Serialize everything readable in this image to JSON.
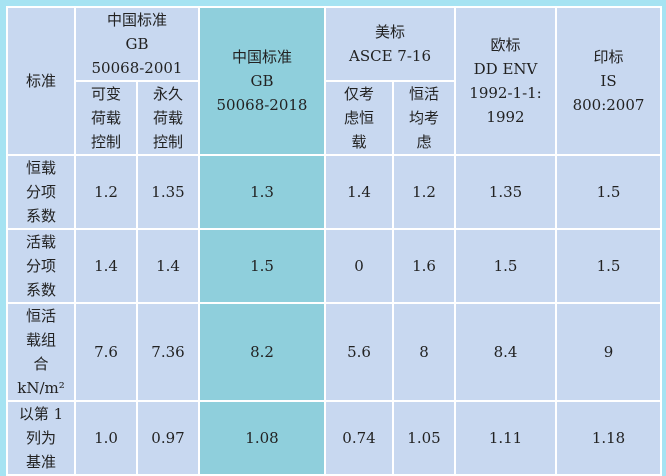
{
  "table": {
    "corner": "标准",
    "groups": [
      {
        "title": [
          "中国标准",
          "GB",
          "50068-2001"
        ],
        "subs": [
          "可变荷载控制",
          "永久荷载控制"
        ]
      },
      {
        "title": [
          "中国标准",
          "GB",
          "50068-2018"
        ]
      },
      {
        "title": [
          "美标",
          "ASCE 7-16"
        ],
        "subs": [
          "仅考虑恒载",
          "恒活均考虑"
        ]
      },
      {
        "title": [
          "欧标",
          "DD ENV",
          "1992-1-1:",
          "1992"
        ]
      },
      {
        "title": [
          "印标",
          "IS",
          "800:2007"
        ]
      }
    ],
    "rows": [
      {
        "label": [
          "恒载",
          "分项",
          "系数"
        ],
        "cells": [
          "1.2",
          "1.35",
          "1.3",
          "1.4",
          "1.2",
          "1.35",
          "1.5"
        ]
      },
      {
        "label": [
          "活载",
          "分项",
          "系数"
        ],
        "cells": [
          "1.4",
          "1.4",
          "1.5",
          "0",
          "1.6",
          "1.5",
          "1.5"
        ]
      },
      {
        "label": [
          "恒活",
          "载组",
          "合",
          "kN/m²"
        ],
        "cells": [
          "7.6",
          "7.36",
          "8.2",
          "5.6",
          "8",
          "8.4",
          "9"
        ]
      },
      {
        "label": [
          "以第 1",
          "列为",
          "基准"
        ],
        "cells": [
          "1.0",
          "0.97",
          "1.08",
          "0.74",
          "1.05",
          "1.11",
          "1.18"
        ]
      }
    ]
  }
}
